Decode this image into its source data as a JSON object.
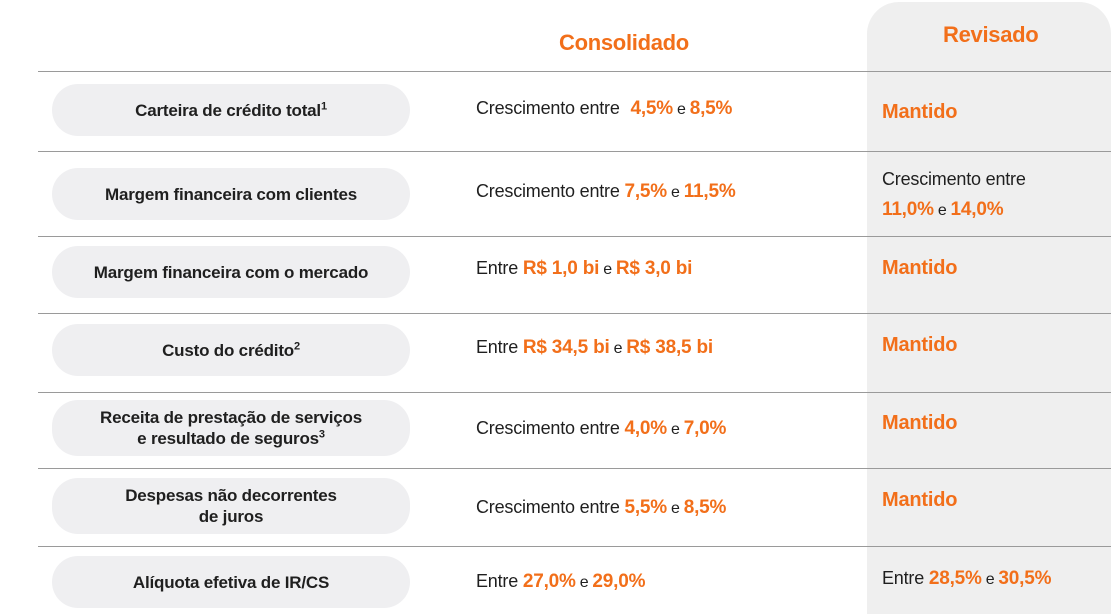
{
  "headers": {
    "consolidado": "Consolidado",
    "revisado": "Revisado"
  },
  "rows": [
    {
      "label": "Carteira de crédito total",
      "sup": "1",
      "prefix": "Crescimento entre",
      "v1": "4,5%",
      "conj": "e",
      "v2": "8,5%",
      "revised": "Mantido"
    },
    {
      "label": "Margem financeira com clientes",
      "prefix": "Crescimento entre",
      "v1": "7,5%",
      "conj": "e",
      "v2": "11,5%",
      "revised_prefix": "Crescimento entre",
      "revised_v1": "11,0%",
      "revised_conj": "e",
      "revised_v2": "14,0%"
    },
    {
      "label": "Margem financeira com o mercado",
      "prefix": "Entre",
      "v1": "R$ 1,0 bi",
      "conj": "e",
      "v2": "R$ 3,0 bi",
      "revised": "Mantido"
    },
    {
      "label": "Custo do crédito",
      "sup": "2",
      "prefix": "Entre",
      "v1": "R$ 34,5 bi",
      "conj": "e",
      "v2": "R$ 38,5 bi",
      "revised": "Mantido"
    },
    {
      "label_line1": "Receita de prestação de serviços",
      "label_line2": "e resultado de seguros",
      "sup": "3",
      "prefix": "Crescimento entre",
      "v1": "4,0%",
      "conj": "e",
      "v2": "7,0%",
      "revised": "Mantido"
    },
    {
      "label_line1": "Despesas não decorrentes",
      "label_line2": "de juros",
      "prefix": "Crescimento entre",
      "v1": "5,5%",
      "conj": "e",
      "v2": "8,5%",
      "revised": "Mantido"
    },
    {
      "label": "Alíquota efetiva de IR/CS",
      "prefix": "Entre",
      "v1": "27,0%",
      "conj": "e",
      "v2": "29,0%",
      "revised_prefix": "Entre",
      "revised_v1": "28,5%",
      "revised_conj": "e",
      "revised_v2": "30,5%"
    }
  ]
}
